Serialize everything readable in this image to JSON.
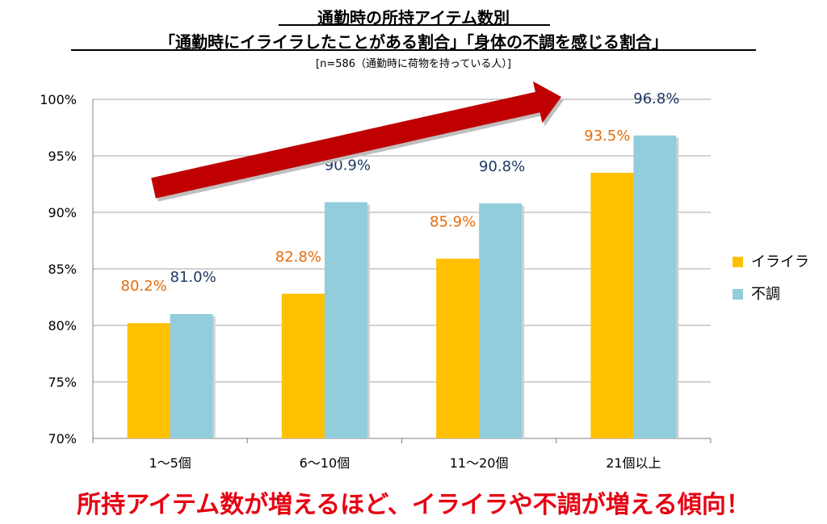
{
  "header": {
    "title": "通勤時の所持アイテム数別",
    "subtitle": "「通勤時にイライラしたことがある割合」「身体の不調を感じる割合」",
    "sample_note": "[n=586（通勤時に荷物を持っている人）]"
  },
  "conclusion": "所持アイテム数が増えるほど、イライラや不調が増える傾向！",
  "colors": {
    "irairа": "#ffc000",
    "fuchou": "#92cddc",
    "label_iraira": "#e46c0a",
    "label_fuchou": "#1f3864",
    "arrow": "#c00000"
  },
  "chart_data": {
    "type": "bar",
    "categories": [
      "1～5個",
      "6～10個",
      "11～20個",
      "21個以上"
    ],
    "series": [
      {
        "name": "イライラ",
        "values": [
          80.2,
          82.8,
          85.9,
          93.5
        ],
        "labels": [
          "80.2%",
          "82.8%",
          "85.9%",
          "93.5%"
        ]
      },
      {
        "name": "不調",
        "values": [
          81.0,
          90.9,
          90.8,
          96.8
        ],
        "labels": [
          "81.0%",
          "90.9%",
          "90.8%",
          "96.8%"
        ]
      }
    ],
    "ylim": [
      70,
      100
    ],
    "yticks": [
      "70%",
      "75%",
      "80%",
      "85%",
      "90%",
      "95%",
      "100%"
    ],
    "grid": true,
    "legend_position": "right",
    "annotation": "upward trend arrow"
  }
}
